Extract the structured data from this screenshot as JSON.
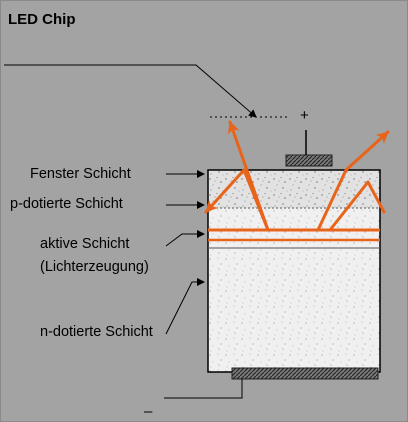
{
  "title": "LED Chip",
  "labels": {
    "window_layer": "Fenster Schicht",
    "p_doped_layer": "p-dotierte Schicht",
    "active_layer": "aktive Schicht",
    "light_generation": "(Lichterzeugung)",
    "n_doped_layer": "n-dotierte Schicht"
  },
  "terminals": {
    "plus": "+",
    "minus": "–"
  },
  "colors": {
    "background": "#a3a3a3",
    "light_rays": "#e8641a",
    "outline": "#000000"
  }
}
